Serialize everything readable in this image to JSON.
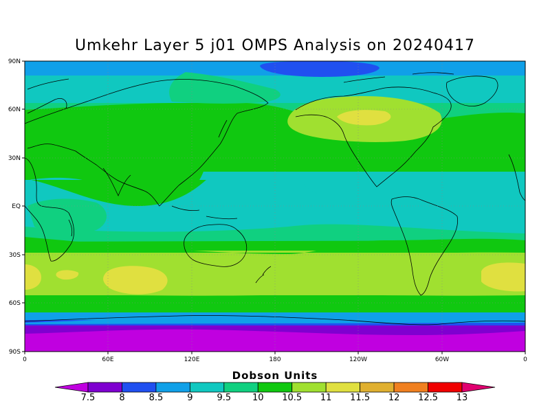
{
  "title": "Umkehr Layer 5 j01 OMPS Analysis on 20240417",
  "lat_labels": [
    "90N",
    "60N",
    "30N",
    "EQ",
    "30S",
    "60S",
    "90S"
  ],
  "lon_labels": [
    "0",
    "60E",
    "120E",
    "180",
    "120W",
    "60W",
    "0"
  ],
  "colorbar": {
    "title": "Dobson Units",
    "ticks": [
      "7.5",
      "8",
      "8.5",
      "9",
      "9.5",
      "10",
      "10.5",
      "11",
      "11.5",
      "12",
      "12.5",
      "13"
    ],
    "colors": [
      "#c000e0",
      "#7f00d0",
      "#2050f0",
      "#10a0e8",
      "#10c8c0",
      "#10d080",
      "#10c810",
      "#a0e030",
      "#e0e040",
      "#e0b030",
      "#f08020",
      "#f00000",
      "#e00070"
    ]
  },
  "map_data": {
    "type": "filled-contour-map",
    "variable": "Umkehr Layer 5 ozone",
    "units": "Dobson Units",
    "extent": {
      "lon": [
        0,
        360
      ],
      "lat": [
        -90,
        90
      ]
    },
    "bands_by_latitude": [
      {
        "lat": [
          80,
          90
        ],
        "value_range": "8.5-9"
      },
      {
        "lat": [
          60,
          80
        ],
        "value_range": "9-9.5"
      },
      {
        "lat": [
          20,
          60
        ],
        "value_range": "10-10.5"
      },
      {
        "lat": [
          -20,
          20
        ],
        "value_range": "9.5-10"
      },
      {
        "lat": [
          -30,
          -20
        ],
        "value_range": "10-10.5"
      },
      {
        "lat": [
          -55,
          -30
        ],
        "value_range": "10.5-11"
      },
      {
        "lat": [
          -65,
          -55
        ],
        "value_range": "10-10.5"
      },
      {
        "lat": [
          -72,
          -65
        ],
        "value_range": "9-9.5"
      },
      {
        "lat": [
          -90,
          -72
        ],
        "value_range": "7.5-8"
      }
    ],
    "features": [
      {
        "name": "low over north pole",
        "value_range": "8-8.5"
      },
      {
        "name": "high over western North America",
        "value_range": "11.5-12"
      },
      {
        "name": "high over southern Indian Ocean",
        "value_range": "11.5-12"
      },
      {
        "name": "high over South Atlantic",
        "value_range": "11.5-12"
      }
    ]
  }
}
